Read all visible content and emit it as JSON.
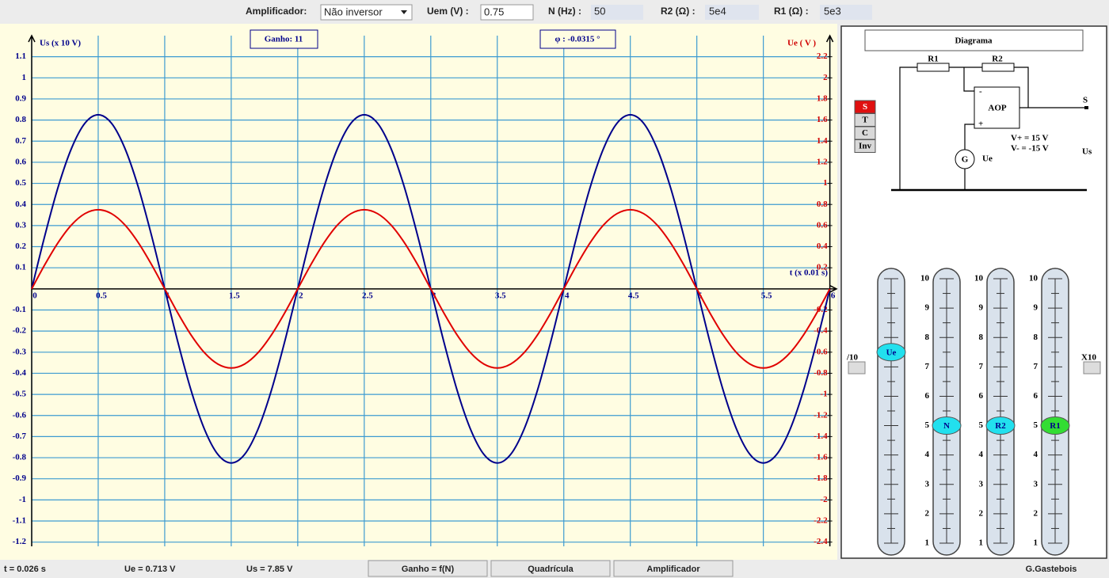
{
  "toolbar": {
    "amplifier_label": "Amplificador:",
    "amplifier_value": "Não inversor",
    "uem_label": "Uem (V) :",
    "uem_value": "0.75",
    "n_label": "N (Hz) :",
    "n_value": "50",
    "r2_label": "R2 (Ω) :",
    "r2_value": "5e4",
    "r1_label": "R1 (Ω) :",
    "r1_value": "5e3"
  },
  "chart_data": {
    "type": "line",
    "y_label": "Us (x 10 V)",
    "y2_label": "Ue ( V )",
    "x_label": "t (x 0.01 s)",
    "annotations": [
      "Ganho: 11",
      "φ : -0.0315 °"
    ],
    "x": [
      0,
      0.1,
      0.2,
      0.3,
      0.4,
      0.5,
      0.6,
      0.7,
      0.8,
      0.9,
      1,
      1.1,
      1.2,
      1.3,
      1.4,
      1.5,
      1.6,
      1.7,
      1.8,
      1.9,
      2,
      2.1,
      2.2,
      2.3,
      2.4,
      2.5,
      2.6,
      2.7,
      2.8,
      2.9,
      3,
      3.1,
      3.2,
      3.3,
      3.4,
      3.5,
      3.6,
      3.7,
      3.8,
      3.9,
      4,
      4.1,
      4.2,
      4.3,
      4.4,
      4.5,
      4.6,
      4.7,
      4.8,
      4.9,
      5,
      5.1,
      5.2,
      5.3,
      5.4,
      5.5,
      5.6,
      5.7,
      5.8,
      5.9,
      6
    ],
    "series": [
      {
        "color": "#00008b",
        "values": [
          0,
          0.255,
          0.485,
          0.667,
          0.785,
          0.825,
          0.785,
          0.667,
          0.485,
          0.255,
          0,
          -0.255,
          -0.485,
          -0.667,
          -0.785,
          -0.825,
          -0.785,
          -0.667,
          -0.485,
          -0.255,
          0,
          0.255,
          0.485,
          0.667,
          0.785,
          0.825,
          0.785,
          0.667,
          0.485,
          0.255,
          0,
          -0.255,
          -0.485,
          -0.667,
          -0.785,
          -0.825,
          -0.785,
          -0.667,
          -0.485,
          -0.255,
          0,
          0.255,
          0.485,
          0.667,
          0.785,
          0.825,
          0.785,
          0.667,
          0.485,
          0.255,
          0,
          -0.255,
          -0.485,
          -0.667,
          -0.785,
          -0.825,
          -0.785,
          -0.667,
          -0.485,
          -0.255,
          0
        ]
      },
      {
        "color": "#e00000",
        "axis": "y2",
        "values": [
          0,
          0.232,
          0.441,
          0.607,
          0.713,
          0.75,
          0.713,
          0.607,
          0.441,
          0.232,
          0,
          -0.232,
          -0.441,
          -0.607,
          -0.713,
          -0.75,
          -0.713,
          -0.607,
          -0.441,
          -0.232,
          0,
          0.232,
          0.441,
          0.607,
          0.713,
          0.75,
          0.713,
          0.607,
          0.441,
          0.232,
          0,
          -0.232,
          -0.441,
          -0.607,
          -0.713,
          -0.75,
          -0.713,
          -0.607,
          -0.441,
          -0.232,
          0,
          0.232,
          0.441,
          0.607,
          0.713,
          0.75,
          0.713,
          0.607,
          0.441,
          0.232,
          0,
          -0.232,
          -0.441,
          -0.607,
          -0.713,
          -0.75,
          -0.713,
          -0.607,
          -0.441,
          -0.232,
          0
        ]
      }
    ],
    "xlim": [
      0,
      6.05
    ],
    "ylim": [
      -1.22,
      1.2
    ],
    "y2lim": [
      -2.44,
      2.4
    ],
    "xticks": [
      0,
      0.5,
      1,
      1.5,
      2,
      2.5,
      3,
      3.5,
      4,
      4.5,
      5,
      5.5,
      6
    ],
    "yticks": [
      1.1,
      1,
      0.9,
      0.8,
      0.7,
      0.6,
      0.5,
      0.4,
      0.3,
      0.2,
      0.1,
      -0.1,
      -0.2,
      -0.3,
      -0.4,
      -0.5,
      -0.6,
      -0.7,
      -0.8,
      -0.9,
      -1,
      -1.1,
      -1.2
    ],
    "y2ticks": [
      2.2,
      2,
      1.8,
      1.6,
      1.4,
      1.2,
      1,
      0.8,
      0.6,
      0.4,
      0.2,
      -0.2,
      -0.4,
      -0.6,
      -0.8,
      -1,
      -1.2,
      -1.4,
      -1.6,
      -1.8,
      -2,
      -2.2,
      -2.4
    ],
    "grid": true
  },
  "diagram": {
    "title": "Diagrama",
    "r1": "R1",
    "r2": "R2",
    "aop": "AOP",
    "minus": "-",
    "plus": "+",
    "s": "S",
    "vplus": "V+ = 15 V",
    "vminus": "V- = -15 V",
    "us": "Us",
    "g": "G",
    "ue": "Ue"
  },
  "mode_buttons": [
    "S",
    "T",
    "C",
    "Inv"
  ],
  "sliders": {
    "divide": "/10",
    "multiply": "X10",
    "scale": [
      1,
      2,
      3,
      4,
      5,
      6,
      7,
      8,
      9,
      10
    ],
    "knobs": [
      {
        "label": "Ue",
        "value": 7.5,
        "color": "#22e0ee"
      },
      {
        "label": "N",
        "value": 5,
        "color": "#22e0ee"
      },
      {
        "label": "R2",
        "value": 5,
        "color": "#22e0ee"
      },
      {
        "label": "R1",
        "value": 5,
        "color": "#33dd33"
      }
    ]
  },
  "status": {
    "t": "t = 0.026 s",
    "ue": "Ue = 0.713 V",
    "us": "Us = 7.85 V",
    "buttons": [
      "Ganho = f(N)",
      "Quadrícula",
      "Amplificador"
    ],
    "author": "G.Gastebois"
  }
}
